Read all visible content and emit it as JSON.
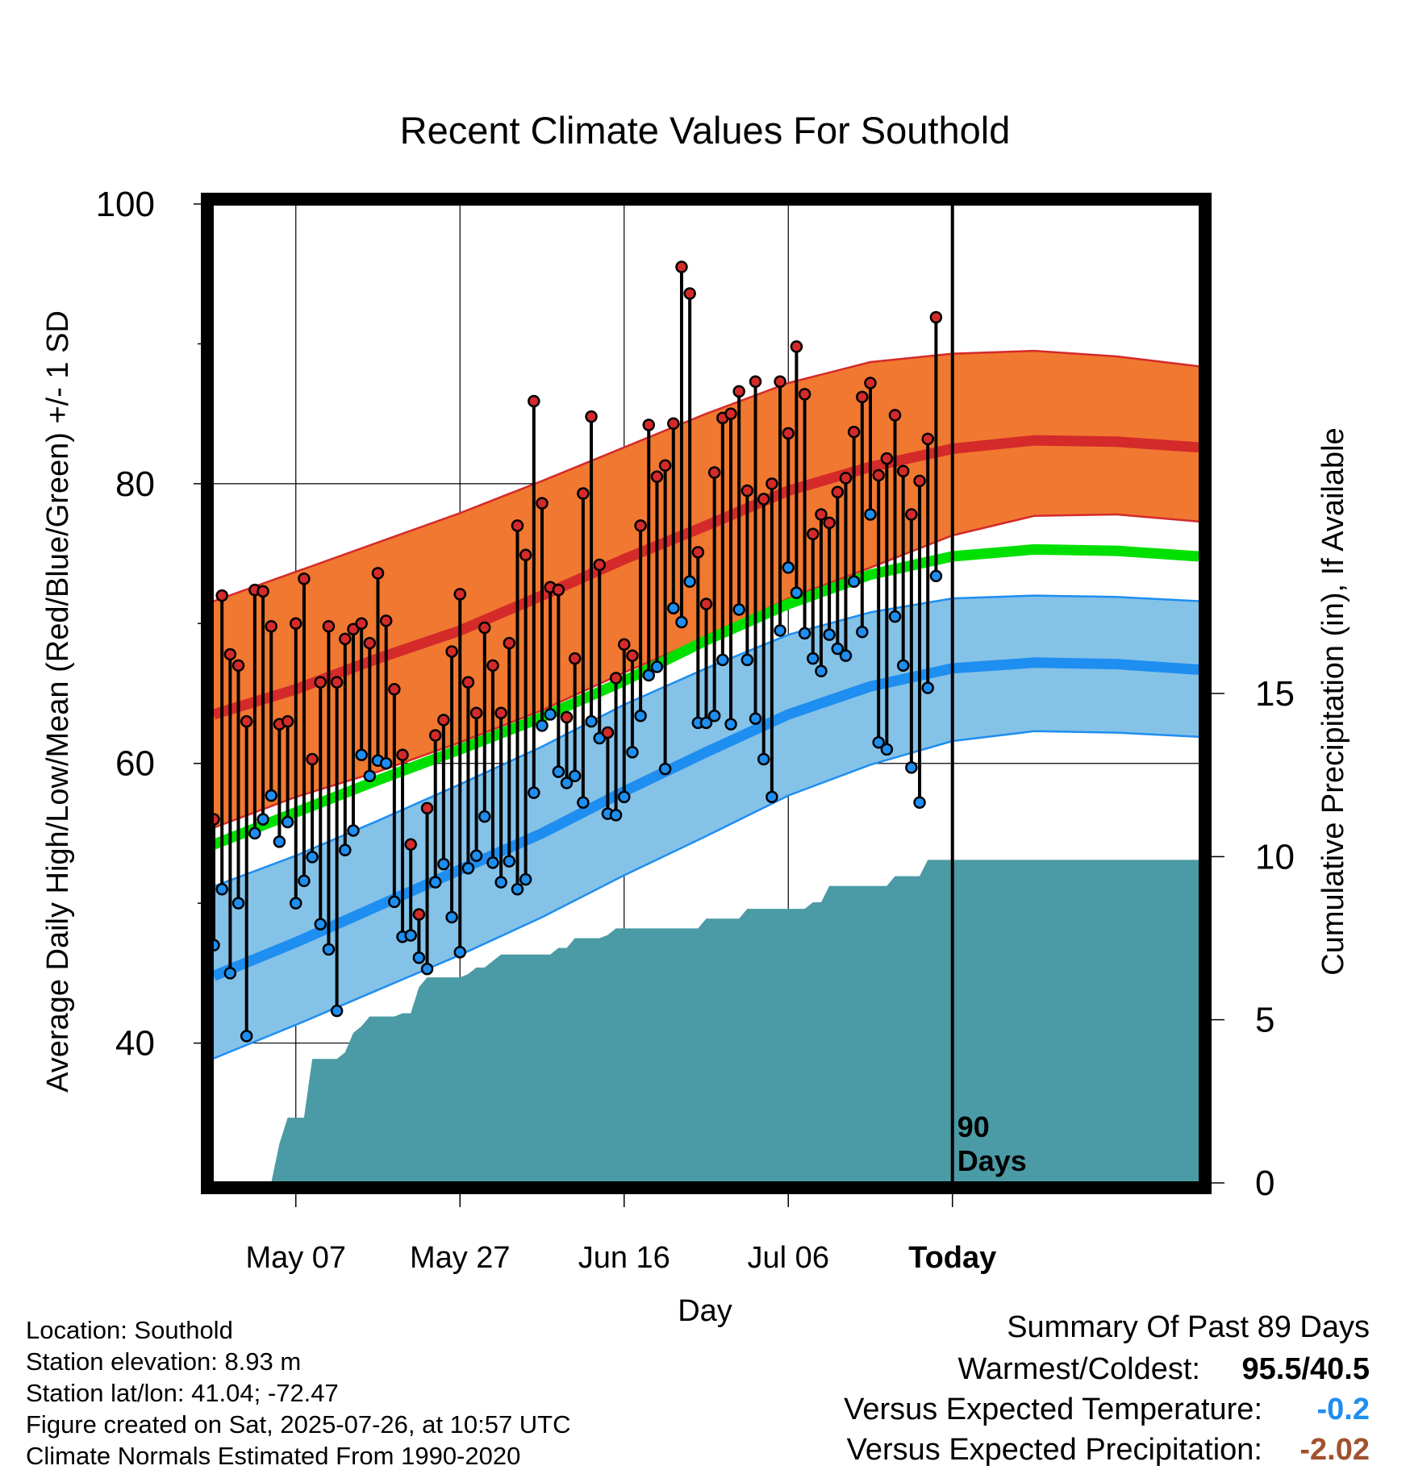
{
  "chart_data": {
    "type": "line",
    "title": "Recent Climate Values For Southold",
    "xlabel": "Day",
    "ylabel": "Average Daily High/Low/Mean (Red/Blue/Green) +/- 1 SD",
    "y2label": "Cumulative Precipitation (in), If Available",
    "ylim": [
      30,
      100
    ],
    "y2lim": [
      0,
      30
    ],
    "y_ticks": [
      "100",
      "80",
      "60",
      "40"
    ],
    "y2_ticks": [
      "15",
      "10",
      "5",
      "0"
    ],
    "x_ticks": [
      "May 07",
      "May 27",
      "Jun 16",
      "Jul 06",
      "Today"
    ],
    "today_marker": "90\nDays",
    "grid": true,
    "colors": {
      "high_band": "#f07830",
      "high_line": "#d42a2a",
      "low_band": "#85c2e8",
      "low_line": "#1e8ef0",
      "mean_line": "#00e000",
      "precip": "#4a9ba5"
    },
    "normals": {
      "high_mean": [
        [
          0,
          63.5
        ],
        [
          10,
          65.3
        ],
        [
          20,
          67.5
        ],
        [
          30,
          69.5
        ],
        [
          40,
          72
        ],
        [
          50,
          74.6
        ],
        [
          60,
          77
        ],
        [
          70,
          79.5
        ],
        [
          80,
          81.2
        ],
        [
          90,
          82.5
        ],
        [
          100,
          83.1
        ],
        [
          110,
          83
        ],
        [
          120,
          82.6
        ]
      ],
      "high_upper": [
        [
          0,
          71.6
        ],
        [
          10,
          73.7
        ],
        [
          20,
          75.8
        ],
        [
          30,
          77.9
        ],
        [
          40,
          80.2
        ],
        [
          50,
          82.6
        ],
        [
          60,
          85
        ],
        [
          70,
          87.2
        ],
        [
          80,
          88.7
        ],
        [
          90,
          89.3
        ],
        [
          100,
          89.5
        ],
        [
          110,
          89.1
        ],
        [
          120,
          88.4
        ]
      ],
      "high_lower": [
        [
          0,
          55.4
        ],
        [
          10,
          57.6
        ],
        [
          20,
          59.4
        ],
        [
          30,
          61.5
        ],
        [
          40,
          63.8
        ],
        [
          50,
          66.5
        ],
        [
          60,
          69
        ],
        [
          70,
          71.8
        ],
        [
          80,
          74
        ],
        [
          90,
          76.3
        ],
        [
          100,
          77.7
        ],
        [
          110,
          77.8
        ],
        [
          120,
          77.3
        ]
      ],
      "mean_line": [
        [
          0,
          54.2
        ],
        [
          10,
          56.5
        ],
        [
          20,
          58.8
        ],
        [
          30,
          61
        ],
        [
          40,
          63.3
        ],
        [
          50,
          65.9
        ],
        [
          60,
          68.8
        ],
        [
          70,
          71.4
        ],
        [
          80,
          73.5
        ],
        [
          90,
          74.8
        ],
        [
          100,
          75.3
        ],
        [
          110,
          75.2
        ],
        [
          120,
          74.8
        ]
      ],
      "low_mean": [
        [
          0,
          44.8
        ],
        [
          10,
          47.2
        ],
        [
          20,
          49.8
        ],
        [
          30,
          52.4
        ],
        [
          40,
          55
        ],
        [
          50,
          58
        ],
        [
          60,
          60.8
        ],
        [
          70,
          63.5
        ],
        [
          80,
          65.5
        ],
        [
          90,
          66.8
        ],
        [
          100,
          67.2
        ],
        [
          110,
          67.1
        ],
        [
          120,
          66.7
        ]
      ],
      "low_upper": [
        [
          0,
          51.2
        ],
        [
          10,
          53.4
        ],
        [
          20,
          55.9
        ],
        [
          30,
          58.5
        ],
        [
          40,
          61.2
        ],
        [
          50,
          64.2
        ],
        [
          60,
          66.8
        ],
        [
          70,
          69.2
        ],
        [
          80,
          70.8
        ],
        [
          90,
          71.8
        ],
        [
          100,
          72
        ],
        [
          110,
          71.9
        ],
        [
          120,
          71.6
        ]
      ],
      "low_lower": [
        [
          0,
          38.9
        ],
        [
          10,
          41.3
        ],
        [
          20,
          43.8
        ],
        [
          30,
          46.3
        ],
        [
          40,
          49
        ],
        [
          50,
          52
        ],
        [
          60,
          54.8
        ],
        [
          70,
          57.7
        ],
        [
          80,
          59.9
        ],
        [
          90,
          61.6
        ],
        [
          100,
          62.3
        ],
        [
          110,
          62.2
        ],
        [
          120,
          61.9
        ]
      ]
    },
    "days": [
      {
        "day": 0,
        "high": 56,
        "low": 47
      },
      {
        "day": 1,
        "high": 72,
        "low": 51
      },
      {
        "day": 2,
        "high": 67.8,
        "low": 45
      },
      {
        "day": 3,
        "high": 67,
        "low": 50
      },
      {
        "day": 4,
        "high": 63,
        "low": 40.5
      },
      {
        "day": 5,
        "high": 72.4,
        "low": 55
      },
      {
        "day": 6,
        "high": 72.3,
        "low": 56
      },
      {
        "day": 7,
        "high": 69.8,
        "low": 57.7
      },
      {
        "day": 8,
        "high": 62.8,
        "low": 54.4
      },
      {
        "day": 9,
        "high": 63,
        "low": 55.8
      },
      {
        "day": 10,
        "high": 70,
        "low": 50
      },
      {
        "day": 11,
        "high": 73.2,
        "low": 51.6
      },
      {
        "day": 12,
        "high": 60.3,
        "low": 53.3
      },
      {
        "day": 13,
        "high": 65.8,
        "low": 48.5
      },
      {
        "day": 14,
        "high": 69.8,
        "low": 46.7
      },
      {
        "day": 15,
        "high": 65.8,
        "low": 42.3
      },
      {
        "day": 16,
        "high": 68.9,
        "low": 53.8
      },
      {
        "day": 17,
        "high": 69.6,
        "low": 55.2
      },
      {
        "day": 18,
        "high": 70,
        "low": 60.6
      },
      {
        "day": 19,
        "high": 68.6,
        "low": 59.1
      },
      {
        "day": 20,
        "high": 73.6,
        "low": 60.2
      },
      {
        "day": 21,
        "high": 70.2,
        "low": 60
      },
      {
        "day": 22,
        "high": 65.3,
        "low": 50.1
      },
      {
        "day": 23,
        "high": 60.6,
        "low": 47.6
      },
      {
        "day": 24,
        "high": 54.2,
        "low": 47.7
      },
      {
        "day": 25,
        "high": 49.2,
        "low": 46.1
      },
      {
        "day": 26,
        "high": 56.8,
        "low": 45.3
      },
      {
        "day": 27,
        "high": 62,
        "low": 51.5
      },
      {
        "day": 28,
        "high": 63.1,
        "low": 52.8
      },
      {
        "day": 29,
        "high": 68,
        "low": 49
      },
      {
        "day": 30,
        "high": 72.1,
        "low": 46.5
      },
      {
        "day": 31,
        "high": 65.8,
        "low": 52.5
      },
      {
        "day": 32,
        "high": 63.6,
        "low": 53.4
      },
      {
        "day": 33,
        "high": 69.7,
        "low": 56.2
      },
      {
        "day": 34,
        "high": 67,
        "low": 52.9
      },
      {
        "day": 35,
        "high": 63.6,
        "low": 51.5
      },
      {
        "day": 36,
        "high": 68.6,
        "low": 53
      },
      {
        "day": 37,
        "high": 77,
        "low": 51
      },
      {
        "day": 38,
        "high": 74.9,
        "low": 51.7
      },
      {
        "day": 39,
        "high": 85.9,
        "low": 57.9
      },
      {
        "day": 40,
        "high": 78.6,
        "low": 62.7
      },
      {
        "day": 41,
        "high": 72.6,
        "low": 63.5
      },
      {
        "day": 42,
        "high": 72.4,
        "low": 59.4
      },
      {
        "day": 43,
        "high": 63.3,
        "low": 58.6
      },
      {
        "day": 44,
        "high": 67.5,
        "low": 59.1
      },
      {
        "day": 45,
        "high": 79.3,
        "low": 57.2
      },
      {
        "day": 46,
        "high": 84.8,
        "low": 63
      },
      {
        "day": 47,
        "high": 74.2,
        "low": 61.8
      },
      {
        "day": 48,
        "high": 62.2,
        "low": 56.4
      },
      {
        "day": 49,
        "high": 66.1,
        "low": 56.3
      },
      {
        "day": 50,
        "high": 68.5,
        "low": 57.6
      },
      {
        "day": 51,
        "high": 67.7,
        "low": 60.8
      },
      {
        "day": 52,
        "high": 77,
        "low": 63.4
      },
      {
        "day": 53,
        "high": 84.2,
        "low": 66.3
      },
      {
        "day": 54,
        "high": 80.5,
        "low": 66.9
      },
      {
        "day": 55,
        "high": 81.3,
        "low": 59.6
      },
      {
        "day": 56,
        "high": 84.3,
        "low": 71.1
      },
      {
        "day": 57,
        "high": 95.5,
        "low": 70.1
      },
      {
        "day": 58,
        "high": 93.6,
        "low": 73
      },
      {
        "day": 59,
        "high": 75.1,
        "low": 62.9
      },
      {
        "day": 60,
        "high": 71.4,
        "low": 62.9
      },
      {
        "day": 61,
        "high": 80.8,
        "low": 63.4
      },
      {
        "day": 62,
        "high": 84.7,
        "low": 67.4
      },
      {
        "day": 63,
        "high": 85,
        "low": 62.8
      },
      {
        "day": 64,
        "high": 86.6,
        "low": 71
      },
      {
        "day": 65,
        "high": 79.5,
        "low": 67.4
      },
      {
        "day": 66,
        "high": 87.3,
        "low": 63.2
      },
      {
        "day": 67,
        "high": 78.9,
        "low": 60.3
      },
      {
        "day": 68,
        "high": 80,
        "low": 57.6
      },
      {
        "day": 69,
        "high": 87.3,
        "low": 69.5
      },
      {
        "day": 70,
        "high": 83.6,
        "low": 74
      },
      {
        "day": 71,
        "high": 89.8,
        "low": 72.2
      },
      {
        "day": 72,
        "high": 86.4,
        "low": 69.3
      },
      {
        "day": 73,
        "high": 76.4,
        "low": 67.5
      },
      {
        "day": 74,
        "high": 77.8,
        "low": 66.6
      },
      {
        "day": 75,
        "high": 77.2,
        "low": 69.2
      },
      {
        "day": 76,
        "high": 79.4,
        "low": 68.2
      },
      {
        "day": 77,
        "high": 80.4,
        "low": 67.7
      },
      {
        "day": 78,
        "high": 83.7,
        "low": 73
      },
      {
        "day": 79,
        "high": 86.2,
        "low": 69.4
      },
      {
        "day": 80,
        "high": 87.2,
        "low": 77.8
      },
      {
        "day": 81,
        "high": 80.6,
        "low": 61.5
      },
      {
        "day": 82,
        "high": 81.8,
        "low": 61
      },
      {
        "day": 83,
        "high": 84.9,
        "low": 70.5
      },
      {
        "day": 84,
        "high": 80.9,
        "low": 67
      },
      {
        "day": 85,
        "high": 77.8,
        "low": 59.7
      },
      {
        "day": 86,
        "high": 80.2,
        "low": 57.2
      },
      {
        "day": 87,
        "high": 83.2,
        "low": 65.4
      },
      {
        "day": 88,
        "high": 91.9,
        "low": 73.4
      }
    ],
    "cumulative_precip": [
      [
        0,
        0
      ],
      [
        7,
        0
      ],
      [
        8,
        1.2
      ],
      [
        9,
        2
      ],
      [
        11,
        2
      ],
      [
        12,
        3.8
      ],
      [
        15,
        3.8
      ],
      [
        16,
        4
      ],
      [
        17,
        4.6
      ],
      [
        18,
        4.8
      ],
      [
        19,
        5.1
      ],
      [
        22,
        5.1
      ],
      [
        23,
        5.2
      ],
      [
        24,
        5.2
      ],
      [
        25,
        6
      ],
      [
        26,
        6.3
      ],
      [
        30,
        6.3
      ],
      [
        31,
        6.4
      ],
      [
        32,
        6.6
      ],
      [
        33,
        6.6
      ],
      [
        34,
        6.8
      ],
      [
        35,
        7
      ],
      [
        41,
        7
      ],
      [
        42,
        7.2
      ],
      [
        43,
        7.2
      ],
      [
        44,
        7.5
      ],
      [
        47,
        7.5
      ],
      [
        48,
        7.6
      ],
      [
        49,
        7.8
      ],
      [
        59,
        7.8
      ],
      [
        60,
        8.1
      ],
      [
        64,
        8.1
      ],
      [
        65,
        8.4
      ],
      [
        72,
        8.4
      ],
      [
        73,
        8.6
      ],
      [
        74,
        8.6
      ],
      [
        75,
        9.1
      ],
      [
        82,
        9.1
      ],
      [
        83,
        9.4
      ],
      [
        86,
        9.4
      ],
      [
        87,
        9.9
      ],
      [
        90,
        9.9
      ]
    ],
    "x_tick_days": [
      10,
      30,
      50,
      70,
      90
    ]
  },
  "footer": {
    "location": "Location: Southold",
    "elevation": "Station elevation: 8.93 m",
    "latlon": "Station lat/lon: 41.04; -72.47",
    "created": "Figure created on Sat, 2025-07-26, at 10:57 UTC",
    "normals": "Climate Normals Estimated From 1990-2020"
  },
  "summary": {
    "heading": "Summary Of Past 89 Days",
    "warm_cold_label": "Warmest/Coldest:",
    "warm_cold_value": "95.5/40.5",
    "temp_label": "Versus Expected Temperature:",
    "temp_value": "-0.2",
    "precip_label": "Versus Expected Precipitation:",
    "precip_value": "-2.02",
    "temp_color": "#1e8ef0",
    "precip_color": "#a0522d"
  }
}
